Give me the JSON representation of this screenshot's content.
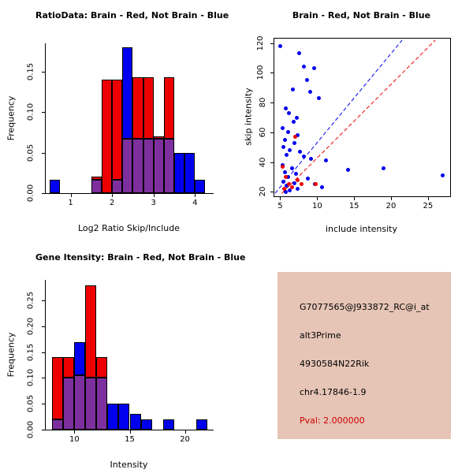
{
  "palette": {
    "red": "#EE0000",
    "blue": "#0000EE",
    "purple": "#7D2F9E",
    "axis": "#000000",
    "info_bg": "#E6C5B6",
    "pval_red": "#CD0000"
  },
  "chart_data": [
    {
      "type": "bar",
      "id": "ratio-hist",
      "title": "RatioData: Brain - Red, Not Brain - Blue",
      "xlabel": "Log2 Ratio Skip/Include",
      "ylabel": "Frequency",
      "bin_start": 0.5,
      "bin_width": 0.25,
      "xlim": [
        0.4,
        4.45
      ],
      "ylim": [
        0,
        0.185
      ],
      "xticks": [
        "1",
        "2",
        "3",
        "4"
      ],
      "yticks": [
        "0.00",
        "0.05",
        "0.10",
        "0.15"
      ],
      "grid": false,
      "series": [
        {
          "name": "Brain",
          "color_key": "red",
          "values": [
            0,
            0,
            0,
            0,
            0.02,
            0.14,
            0.14,
            0.067,
            0.143,
            0.143,
            0.07,
            0.143,
            0,
            0,
            0
          ]
        },
        {
          "name": "Not Brain",
          "color_key": "blue",
          "values": [
            0.017,
            0,
            0,
            0,
            0.017,
            0,
            0.017,
            0.18,
            0.067,
            0.067,
            0.067,
            0.067,
            0.05,
            0.05,
            0.017
          ]
        }
      ]
    },
    {
      "type": "scatter",
      "id": "skip-include-scatter",
      "title": "Brain - Red, Not Brain - Blue",
      "xlabel": "include intensity",
      "ylabel": "skip intensity",
      "xlim": [
        4.2,
        28
      ],
      "ylim": [
        17,
        123
      ],
      "xticks": [
        "5",
        "10",
        "15",
        "20",
        "25"
      ],
      "yticks": [
        "20",
        "40",
        "60",
        "80",
        "100",
        "120"
      ],
      "grid": false,
      "series": [
        {
          "name": "Not Brain",
          "color_key": "blue",
          "points": [
            [
              5.0,
              118
            ],
            [
              7.6,
              113
            ],
            [
              8.2,
              104
            ],
            [
              9.6,
              103
            ],
            [
              8.6,
              95
            ],
            [
              6.7,
              89
            ],
            [
              9.1,
              87
            ],
            [
              10.2,
              83
            ],
            [
              5.7,
              76
            ],
            [
              6.2,
              73
            ],
            [
              7.2,
              70
            ],
            [
              6.8,
              67
            ],
            [
              5.3,
              63
            ],
            [
              6.1,
              60
            ],
            [
              7.3,
              58
            ],
            [
              5.6,
              55
            ],
            [
              6.9,
              53
            ],
            [
              5.4,
              50
            ],
            [
              6.3,
              48
            ],
            [
              7.7,
              47
            ],
            [
              5.9,
              45
            ],
            [
              8.2,
              44
            ],
            [
              9.2,
              42
            ],
            [
              11.2,
              41
            ],
            [
              5.3,
              38
            ],
            [
              6.6,
              36
            ],
            [
              19.0,
              36
            ],
            [
              14.2,
              35
            ],
            [
              5.6,
              33
            ],
            [
              7.1,
              32
            ],
            [
              27.0,
              31
            ],
            [
              6.1,
              30
            ],
            [
              8.7,
              29
            ],
            [
              5.4,
              27
            ],
            [
              6.9,
              26
            ],
            [
              9.7,
              25
            ],
            [
              5.9,
              24
            ],
            [
              10.7,
              23
            ],
            [
              7.4,
              22
            ],
            [
              6.3,
              21
            ],
            [
              5.7,
              20
            ]
          ]
        },
        {
          "name": "Brain",
          "color_key": "red",
          "points": [
            [
              5.3,
              37
            ],
            [
              7.0,
              57
            ],
            [
              5.8,
              30
            ],
            [
              6.2,
              25
            ],
            [
              7.9,
              25
            ],
            [
              9.8,
              25
            ],
            [
              5.5,
              22
            ],
            [
              6.6,
              23
            ],
            [
              7.3,
              28
            ]
          ]
        }
      ],
      "lines": [
        {
          "name": "not-brain-fit",
          "color_key": "blue",
          "x1": 4.3,
          "y1": 19,
          "x2": 21.5,
          "y2": 122,
          "dashed": true
        },
        {
          "name": "brain-fit",
          "color_key": "red",
          "x1": 5.2,
          "y1": 19,
          "x2": 26.0,
          "y2": 122,
          "dashed": true
        }
      ]
    },
    {
      "type": "bar",
      "id": "intensity-hist",
      "title": "Gene Itensity: Brain - Red, Not Brain - Blue",
      "xlabel": "Intensity",
      "ylabel": "Frequency",
      "bin_start": 8,
      "bin_width": 1,
      "xlim": [
        7.4,
        22.6
      ],
      "ylim": [
        0,
        0.29
      ],
      "xticks": [
        "10",
        "15",
        "20"
      ],
      "yticks": [
        "0.00",
        "0.05",
        "0.10",
        "0.15",
        "0.20",
        "0.25"
      ],
      "grid": false,
      "series": [
        {
          "name": "Brain",
          "color_key": "red",
          "values": [
            0.14,
            0.14,
            0.105,
            0.28,
            0.14,
            0,
            0,
            0,
            0,
            0,
            0,
            0,
            0,
            0
          ]
        },
        {
          "name": "Not Brain",
          "color_key": "blue",
          "values": [
            0.02,
            0.1,
            0.17,
            0.1,
            0.1,
            0.05,
            0.05,
            0.03,
            0.02,
            0,
            0.02,
            0,
            0,
            0.02
          ]
        }
      ]
    }
  ],
  "info_panel": {
    "background": "#E6C5B6",
    "lines": [
      {
        "text": "G7077565@J933872_RC@i_at",
        "color": "#000000"
      },
      {
        "text": "alt3Prime",
        "color": "#000000"
      },
      {
        "text": "4930584N22Rik",
        "color": "#000000"
      },
      {
        "text": "chr4.17846-1.9",
        "color": "#000000"
      },
      {
        "text": "Pval: 2.000000",
        "color": "#CD0000"
      }
    ]
  }
}
